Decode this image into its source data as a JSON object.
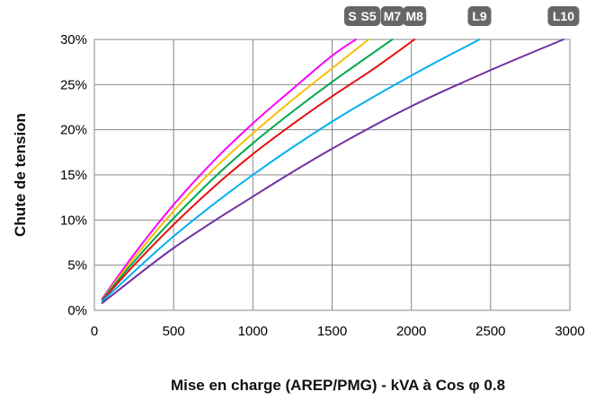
{
  "chart_data": {
    "type": "line",
    "title": "",
    "xlabel": "Mise en charge (AREP/PMG) - kVA à Cos φ 0.8",
    "ylabel": "Chute de tension",
    "xlim": [
      0,
      3000
    ],
    "ylim": [
      0,
      30
    ],
    "x_ticks": [
      "0",
      "500",
      "1000",
      "1500",
      "2000",
      "2500",
      "3000"
    ],
    "y_ticks": [
      "0%",
      "5%",
      "10%",
      "15%",
      "20%",
      "25%",
      "30%"
    ],
    "grid": true,
    "legend": "top, as labelled badges above each curve end",
    "series": [
      {
        "name": "S4",
        "color": "#ff00ff",
        "x": [
          50,
          250,
          500,
          750,
          1000,
          1250,
          1500,
          1650
        ],
        "y": [
          1.3,
          6.2,
          11.7,
          16.5,
          20.7,
          24.5,
          28.2,
          30.0
        ]
      },
      {
        "name": "S5",
        "color": "#f5c000",
        "x": [
          50,
          250,
          500,
          750,
          1000,
          1250,
          1500,
          1730
        ],
        "y": [
          1.2,
          5.8,
          11.0,
          15.6,
          19.6,
          23.3,
          26.8,
          30.0
        ]
      },
      {
        "name": "M7",
        "color": "#00a84f",
        "x": [
          50,
          250,
          500,
          750,
          1000,
          1250,
          1500,
          1750,
          1880
        ],
        "y": [
          1.2,
          5.4,
          10.2,
          14.6,
          18.5,
          22.0,
          25.3,
          28.4,
          30.0
        ]
      },
      {
        "name": "M8",
        "color": "#e81010",
        "x": [
          50,
          250,
          500,
          750,
          1000,
          1250,
          1500,
          1750,
          2020
        ],
        "y": [
          1.1,
          5.0,
          9.5,
          13.6,
          17.3,
          20.6,
          23.7,
          26.6,
          30.0
        ]
      },
      {
        "name": "L9",
        "color": "#00b0f0",
        "x": [
          50,
          500,
          1000,
          1500,
          2000,
          2430
        ],
        "y": [
          1.0,
          8.2,
          15.0,
          20.9,
          26.0,
          30.0
        ]
      },
      {
        "name": "L10",
        "color": "#7030a0",
        "x": [
          50,
          500,
          1000,
          1500,
          2000,
          2500,
          2960
        ],
        "y": [
          0.8,
          6.9,
          12.6,
          17.9,
          22.6,
          26.6,
          30.0
        ]
      }
    ]
  }
}
